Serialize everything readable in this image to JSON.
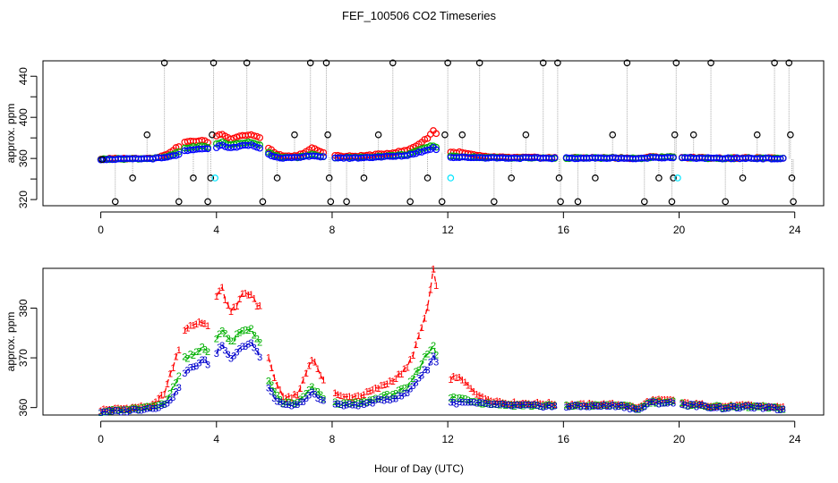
{
  "figure": {
    "title": "FEF_100506  CO2 Timeseries",
    "xlabel": "Hour of Day (UTC)"
  },
  "chart_data": [
    {
      "type": "scatter",
      "title": "FEF_100506  CO2 Timeseries",
      "xlabel": "",
      "ylabel": "approx. ppm",
      "xlim": [
        -2,
        25
      ],
      "ylim": [
        314,
        455
      ],
      "x_ticks": [
        0,
        4,
        8,
        12,
        16,
        20,
        24
      ],
      "y_ticks": [
        320,
        360,
        400,
        440
      ],
      "plotted_y_ticks": [
        320,
        340,
        360,
        380,
        400,
        420,
        440
      ],
      "colors": {
        "black": "#000000",
        "red": "#ff0000",
        "green": "#00b000",
        "blue": "#0000ff",
        "cyan": "#00e5ff",
        "connector": "#aaaaaa"
      },
      "calibration_spikes": [
        {
          "x": 0.05,
          "y": 359
        },
        {
          "x": 0.5,
          "y": 318
        },
        {
          "x": 1.1,
          "y": 341
        },
        {
          "x": 1.6,
          "y": 383
        },
        {
          "x": 2.2,
          "y": 453
        },
        {
          "x": 2.7,
          "y": 318
        },
        {
          "x": 3.2,
          "y": 341
        },
        {
          "x": 3.7,
          "y": 318
        },
        {
          "x": 3.8,
          "y": 341
        },
        {
          "x": 3.85,
          "y": 383
        },
        {
          "x": 3.9,
          "y": 453
        },
        {
          "x": 5.05,
          "y": 453
        },
        {
          "x": 5.6,
          "y": 318
        },
        {
          "x": 6.1,
          "y": 341
        },
        {
          "x": 6.7,
          "y": 383
        },
        {
          "x": 7.25,
          "y": 453
        },
        {
          "x": 7.8,
          "y": 453
        },
        {
          "x": 7.85,
          "y": 383
        },
        {
          "x": 7.9,
          "y": 341
        },
        {
          "x": 7.95,
          "y": 318
        },
        {
          "x": 8.5,
          "y": 318
        },
        {
          "x": 9.1,
          "y": 341
        },
        {
          "x": 9.6,
          "y": 383
        },
        {
          "x": 10.1,
          "y": 453
        },
        {
          "x": 10.7,
          "y": 318
        },
        {
          "x": 11.3,
          "y": 341
        },
        {
          "x": 11.8,
          "y": 318
        },
        {
          "x": 11.9,
          "y": 383
        },
        {
          "x": 12.0,
          "y": 453
        },
        {
          "x": 12.5,
          "y": 383
        },
        {
          "x": 13.1,
          "y": 453
        },
        {
          "x": 13.6,
          "y": 318
        },
        {
          "x": 14.2,
          "y": 341
        },
        {
          "x": 14.7,
          "y": 383
        },
        {
          "x": 15.3,
          "y": 453
        },
        {
          "x": 15.8,
          "y": 453
        },
        {
          "x": 15.85,
          "y": 341
        },
        {
          "x": 15.9,
          "y": 318
        },
        {
          "x": 16.5,
          "y": 318
        },
        {
          "x": 17.1,
          "y": 341
        },
        {
          "x": 17.7,
          "y": 383
        },
        {
          "x": 18.2,
          "y": 453
        },
        {
          "x": 18.8,
          "y": 318
        },
        {
          "x": 19.3,
          "y": 341
        },
        {
          "x": 19.75,
          "y": 318
        },
        {
          "x": 19.8,
          "y": 341
        },
        {
          "x": 19.85,
          "y": 383
        },
        {
          "x": 19.9,
          "y": 453
        },
        {
          "x": 20.5,
          "y": 383
        },
        {
          "x": 21.1,
          "y": 453
        },
        {
          "x": 21.6,
          "y": 318
        },
        {
          "x": 22.2,
          "y": 341
        },
        {
          "x": 22.7,
          "y": 383
        },
        {
          "x": 23.3,
          "y": 453
        },
        {
          "x": 23.8,
          "y": 453
        },
        {
          "x": 23.85,
          "y": 383
        },
        {
          "x": 23.9,
          "y": 341
        },
        {
          "x": 23.95,
          "y": 318
        }
      ],
      "cyan_points": [
        {
          "x": 3.95,
          "y": 341
        },
        {
          "x": 12.1,
          "y": 341
        },
        {
          "x": 19.95,
          "y": 341
        }
      ]
    },
    {
      "type": "line",
      "title": "",
      "xlabel": "Hour of Day (UTC)",
      "ylabel": "approx. ppm",
      "xlim": [
        -2,
        25
      ],
      "ylim": [
        358.5,
        388
      ],
      "x_ticks": [
        0,
        4,
        8,
        12,
        16,
        20,
        24
      ],
      "y_ticks": [
        360,
        370,
        380
      ],
      "gaps": [
        [
          2.75,
          2.85
        ],
        [
          3.75,
          3.95
        ],
        [
          5.6,
          5.75
        ],
        [
          7.8,
          8.05
        ],
        [
          11.7,
          12.05
        ],
        [
          15.8,
          16.05
        ],
        [
          19.85,
          20.05
        ],
        [
          23.75,
          24
        ]
      ],
      "x_step": 0.1,
      "series": [
        {
          "name": "1",
          "label": "1",
          "color": "#ff0000",
          "offset": 1.2,
          "profile": [
            [
              0,
              359.6
            ],
            [
              0.9,
              359.9
            ],
            [
              1.8,
              360.5
            ],
            [
              2.2,
              363
            ],
            [
              2.6,
              370
            ],
            [
              2.9,
              376
            ],
            [
              3.5,
              377.5
            ],
            [
              3.7,
              376
            ],
            [
              4.0,
              382
            ],
            [
              4.2,
              384
            ],
            [
              4.5,
              379
            ],
            [
              4.8,
              382
            ],
            [
              5.2,
              383
            ],
            [
              5.5,
              380
            ],
            [
              5.7,
              372
            ],
            [
              6.0,
              366
            ],
            [
              6.3,
              362
            ],
            [
              6.8,
              362.5
            ],
            [
              7.3,
              370
            ],
            [
              7.5,
              368
            ],
            [
              7.8,
              364
            ],
            [
              8.1,
              363
            ],
            [
              8.4,
              362
            ],
            [
              9.0,
              362.5
            ],
            [
              9.6,
              364
            ],
            [
              10.2,
              366
            ],
            [
              10.6,
              368
            ],
            [
              11.0,
              374
            ],
            [
              11.3,
              380
            ],
            [
              11.55,
              389
            ],
            [
              11.7,
              374
            ],
            [
              12.05,
              366
            ],
            [
              12.4,
              366
            ],
            [
              12.8,
              364
            ],
            [
              13.2,
              362
            ],
            [
              14.0,
              361
            ],
            [
              15.8,
              360.8
            ],
            [
              16.0,
              360.6
            ],
            [
              18.0,
              360.7
            ],
            [
              18.6,
              360
            ],
            [
              19.0,
              361.5
            ],
            [
              19.8,
              361.5
            ],
            [
              20.0,
              361
            ],
            [
              21.5,
              360.3
            ],
            [
              22.5,
              360.5
            ],
            [
              23.0,
              360.3
            ],
            [
              23.75,
              360
            ]
          ]
        },
        {
          "name": "2",
          "label": "2",
          "color": "#00b000",
          "offset": 0.6,
          "profile": [
            [
              0,
              359.3
            ],
            [
              0.9,
              359.6
            ],
            [
              1.8,
              360.2
            ],
            [
              2.2,
              361
            ],
            [
              2.6,
              365
            ],
            [
              2.9,
              370
            ],
            [
              3.5,
              372
            ],
            [
              3.7,
              371
            ],
            [
              4.0,
              374
            ],
            [
              4.2,
              376
            ],
            [
              4.5,
              373
            ],
            [
              4.8,
              375
            ],
            [
              5.2,
              376
            ],
            [
              5.5,
              373
            ],
            [
              5.7,
              367
            ],
            [
              6.0,
              363
            ],
            [
              6.3,
              361
            ],
            [
              6.8,
              361
            ],
            [
              7.3,
              364
            ],
            [
              7.5,
              363
            ],
            [
              7.8,
              361.5
            ],
            [
              8.1,
              361
            ],
            [
              8.4,
              360.8
            ],
            [
              9.0,
              361
            ],
            [
              9.6,
              362
            ],
            [
              10.2,
              363
            ],
            [
              10.6,
              364
            ],
            [
              11.0,
              368
            ],
            [
              11.3,
              371
            ],
            [
              11.55,
              373
            ],
            [
              11.7,
              367
            ],
            [
              12.05,
              362
            ],
            [
              12.4,
              362
            ],
            [
              12.8,
              361.5
            ],
            [
              13.2,
              361
            ],
            [
              14.0,
              360.6
            ],
            [
              15.8,
              360.4
            ],
            [
              16.0,
              360.4
            ],
            [
              18.0,
              360.5
            ],
            [
              18.6,
              359.8
            ],
            [
              19.0,
              361.2
            ],
            [
              19.8,
              361.2
            ],
            [
              20.0,
              360.8
            ],
            [
              21.5,
              360.1
            ],
            [
              22.5,
              360.3
            ],
            [
              23.0,
              360.1
            ],
            [
              23.75,
              359.8
            ]
          ]
        },
        {
          "name": "3",
          "label": "3",
          "color": "#0000cc",
          "offset": 0.0,
          "profile": [
            [
              0,
              359.2
            ],
            [
              0.9,
              359.4
            ],
            [
              1.8,
              360
            ],
            [
              2.2,
              360.5
            ],
            [
              2.6,
              363
            ],
            [
              2.9,
              367
            ],
            [
              3.5,
              369.5
            ],
            [
              3.7,
              369
            ],
            [
              4.0,
              371
            ],
            [
              4.2,
              373
            ],
            [
              4.5,
              370
            ],
            [
              4.8,
              372
            ],
            [
              5.2,
              373
            ],
            [
              5.5,
              370
            ],
            [
              5.7,
              365
            ],
            [
              6.0,
              362
            ],
            [
              6.3,
              360.5
            ],
            [
              6.8,
              360.5
            ],
            [
              7.3,
              363
            ],
            [
              7.5,
              362
            ],
            [
              7.8,
              361
            ],
            [
              8.1,
              360.8
            ],
            [
              8.4,
              360.5
            ],
            [
              9.0,
              360.6
            ],
            [
              9.6,
              361.5
            ],
            [
              10.2,
              362
            ],
            [
              10.6,
              363
            ],
            [
              11.0,
              366
            ],
            [
              11.3,
              368
            ],
            [
              11.55,
              371
            ],
            [
              11.7,
              365
            ],
            [
              12.05,
              361
            ],
            [
              12.4,
              361
            ],
            [
              12.8,
              361
            ],
            [
              13.2,
              360.8
            ],
            [
              14.0,
              360.5
            ],
            [
              15.8,
              360.3
            ],
            [
              16.0,
              360.3
            ],
            [
              18.0,
              360.4
            ],
            [
              18.6,
              359.6
            ],
            [
              19.0,
              361
            ],
            [
              19.8,
              361
            ],
            [
              20.0,
              360.7
            ],
            [
              21.5,
              360
            ],
            [
              22.5,
              360.2
            ],
            [
              23.0,
              360
            ],
            [
              23.75,
              359.6
            ]
          ]
        }
      ]
    }
  ]
}
